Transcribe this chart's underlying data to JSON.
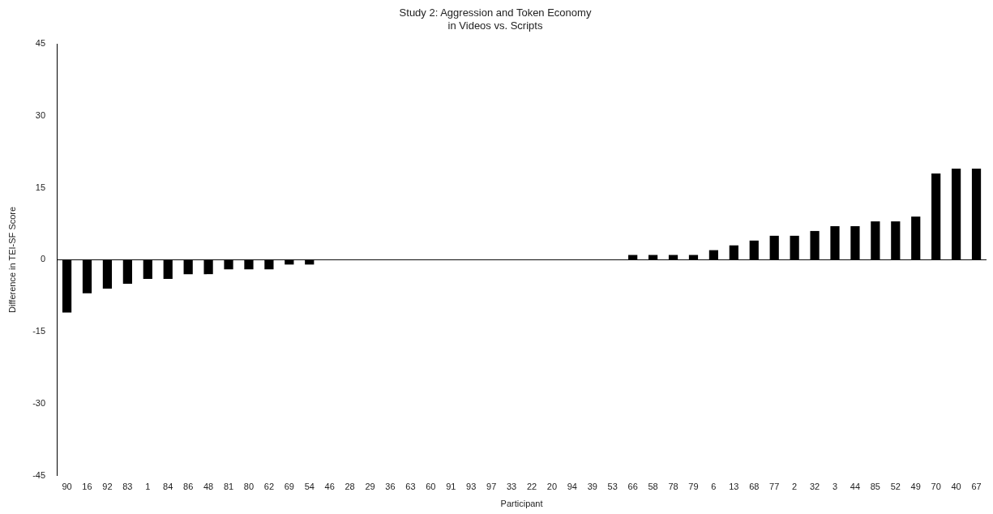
{
  "chart_data": {
    "type": "bar",
    "title": "Study 2: Aggression and Token Economy\nin Videos vs. Scripts",
    "xlabel": "Participant",
    "ylabel": "Difference in TEI-SF Score",
    "categories": [
      "90",
      "16",
      "92",
      "83",
      "1",
      "84",
      "86",
      "48",
      "81",
      "80",
      "62",
      "69",
      "54",
      "46",
      "28",
      "29",
      "36",
      "63",
      "60",
      "91",
      "93",
      "97",
      "33",
      "22",
      "20",
      "94",
      "39",
      "53",
      "66",
      "58",
      "78",
      "79",
      "6",
      "13",
      "68",
      "77",
      "2",
      "32",
      "3",
      "44",
      "85",
      "52",
      "49",
      "70",
      "40",
      "67"
    ],
    "values": [
      -11,
      -7,
      -6,
      -5,
      -4,
      -4,
      -3,
      -3,
      -2,
      -2,
      -2,
      -1,
      -1,
      0,
      0,
      0,
      0,
      0,
      0,
      0,
      0,
      0,
      0,
      0,
      0,
      0,
      0,
      0,
      1,
      1,
      1,
      1,
      2,
      3,
      4,
      5,
      5,
      6,
      7,
      7,
      8,
      8,
      9,
      18,
      19,
      19
    ],
    "color": "#000000",
    "ylim": [
      -45,
      45
    ],
    "yticks": [
      -45,
      -30,
      -15,
      0,
      15,
      30,
      45
    ],
    "legend": false
  }
}
